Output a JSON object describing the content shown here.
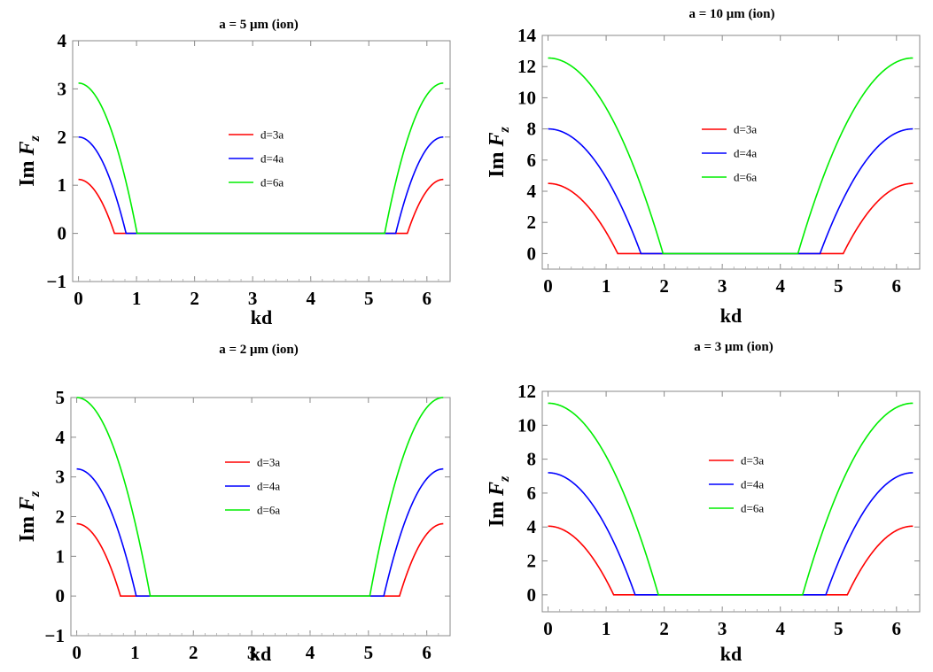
{
  "chart_data": [
    {
      "type": "line",
      "title": "a = 5 μm (ion)",
      "xlabel": "kd",
      "ylabel": "Im F_z",
      "ylabel_main": "Im ",
      "ylabel_var": "F",
      "ylabel_sub": "z",
      "xlim": [
        -0.1,
        6.4
      ],
      "ylim": [
        -1,
        4
      ],
      "xticks": [
        0,
        1,
        2,
        3,
        4,
        5,
        6
      ],
      "yticks": [
        -1,
        0,
        1,
        2,
        3,
        4
      ],
      "grid": false,
      "legend_position": "center",
      "series": [
        {
          "name": "d=3a",
          "color": "#ff0000",
          "peak": 1.12,
          "cut": 0.62
        },
        {
          "name": "d=4a",
          "color": "#0000ff",
          "peak": 2.0,
          "cut": 0.82
        },
        {
          "name": "d=6a",
          "color": "#00ee00",
          "peak": 3.12,
          "cut": 1.01
        }
      ]
    },
    {
      "type": "line",
      "title": "a = 10 μm (ion)",
      "xlabel": "kd",
      "ylabel": "Im F_z",
      "ylabel_main": "Im ",
      "ylabel_var": "F",
      "ylabel_sub": "z",
      "xlim": [
        -0.1,
        6.4
      ],
      "ylim": [
        -1,
        14
      ],
      "xticks": [
        0,
        1,
        2,
        3,
        4,
        5,
        6
      ],
      "yticks": [
        0,
        2,
        4,
        6,
        8,
        10,
        12,
        14
      ],
      "grid": false,
      "legend_position": "center",
      "series": [
        {
          "name": "d=3a",
          "color": "#ff0000",
          "peak": 4.5,
          "cut": 1.2
        },
        {
          "name": "d=4a",
          "color": "#0000ff",
          "peak": 8.0,
          "cut": 1.6
        },
        {
          "name": "d=6a",
          "color": "#00ee00",
          "peak": 12.55,
          "cut": 1.98
        }
      ]
    },
    {
      "type": "line",
      "title": "a = 2 μm (ion)",
      "xlabel": "kd",
      "ylabel": "Im F_z",
      "ylabel_main": "Im ",
      "ylabel_var": "F",
      "ylabel_sub": "z",
      "xlim": [
        -0.1,
        6.4
      ],
      "ylim": [
        -1,
        5
      ],
      "xticks": [
        0,
        1,
        2,
        3,
        4,
        5,
        6
      ],
      "yticks": [
        -1,
        0,
        1,
        2,
        3,
        4,
        5
      ],
      "grid": false,
      "legend_position": "center",
      "series": [
        {
          "name": "d=3a",
          "color": "#ff0000",
          "peak": 1.82,
          "cut": 0.75
        },
        {
          "name": "d=4a",
          "color": "#0000ff",
          "peak": 3.2,
          "cut": 1.02
        },
        {
          "name": "d=6a",
          "color": "#00ee00",
          "peak": 5.0,
          "cut": 1.26
        }
      ]
    },
    {
      "type": "line",
      "title": "a = 3 μm (ion)",
      "xlabel": "kd",
      "ylabel": "Im F_z",
      "ylabel_main": "Im ",
      "ylabel_var": "F",
      "ylabel_sub": "z",
      "xlim": [
        -0.1,
        6.4
      ],
      "ylim": [
        -1,
        12
      ],
      "xticks": [
        0,
        1,
        2,
        3,
        4,
        5,
        6
      ],
      "yticks": [
        0,
        2,
        4,
        6,
        8,
        10,
        12
      ],
      "grid": false,
      "legend_position": "center",
      "series": [
        {
          "name": "d=3a",
          "color": "#ff0000",
          "peak": 4.05,
          "cut": 1.13
        },
        {
          "name": "d=4a",
          "color": "#0000ff",
          "peak": 7.2,
          "cut": 1.5
        },
        {
          "name": "d=6a",
          "color": "#00ee00",
          "peak": 11.3,
          "cut": 1.9
        }
      ]
    }
  ]
}
